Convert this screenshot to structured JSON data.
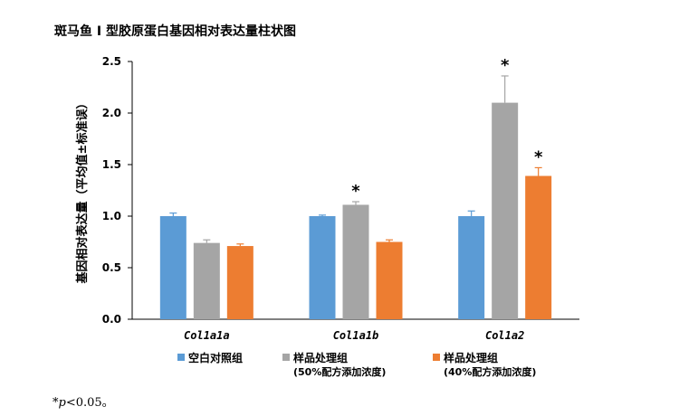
{
  "title": "斑马鱼 I 型胶原蛋白基因相对表达量柱状图",
  "footnote": {
    "star": "*",
    "p": "p",
    "rest": "<0.05。"
  },
  "colors": {
    "blank": "#5B9BD5",
    "sample50": "#A5A5A5",
    "sample40": "#ED7D31",
    "error": "#5B9BD5"
  },
  "chart_data": {
    "type": "bar",
    "title": "斑马鱼 I 型胶原蛋白基因相对表达量柱状图",
    "xlabel": "",
    "ylabel": "基因相对表达量（平均值±标准误）",
    "ylim": [
      0,
      2.5
    ],
    "yticks": [
      "0.0",
      "0.5",
      "1.0",
      "1.5",
      "2.0",
      "2.5"
    ],
    "categories": [
      "Col1a1a",
      "Col1a1b",
      "Col1a2"
    ],
    "series": [
      {
        "name": "空白对照组",
        "values": [
          1.0,
          1.0,
          1.0
        ],
        "errors": [
          0.03,
          0.01,
          0.05
        ],
        "significant": [
          false,
          false,
          false
        ]
      },
      {
        "name": "样品处理组",
        "name_sub": "(50%配方添加浓度)",
        "values": [
          0.74,
          1.11,
          2.1
        ],
        "errors": [
          0.03,
          0.03,
          0.26
        ],
        "significant": [
          false,
          true,
          true
        ]
      },
      {
        "name": "样品处理组",
        "name_sub": "(40%配方添加浓度)",
        "values": [
          0.71,
          0.75,
          1.39
        ],
        "errors": [
          0.02,
          0.02,
          0.08
        ],
        "significant": [
          false,
          false,
          true
        ]
      }
    ],
    "significance_marker": "*",
    "grid": false,
    "legend_position": "bottom"
  }
}
